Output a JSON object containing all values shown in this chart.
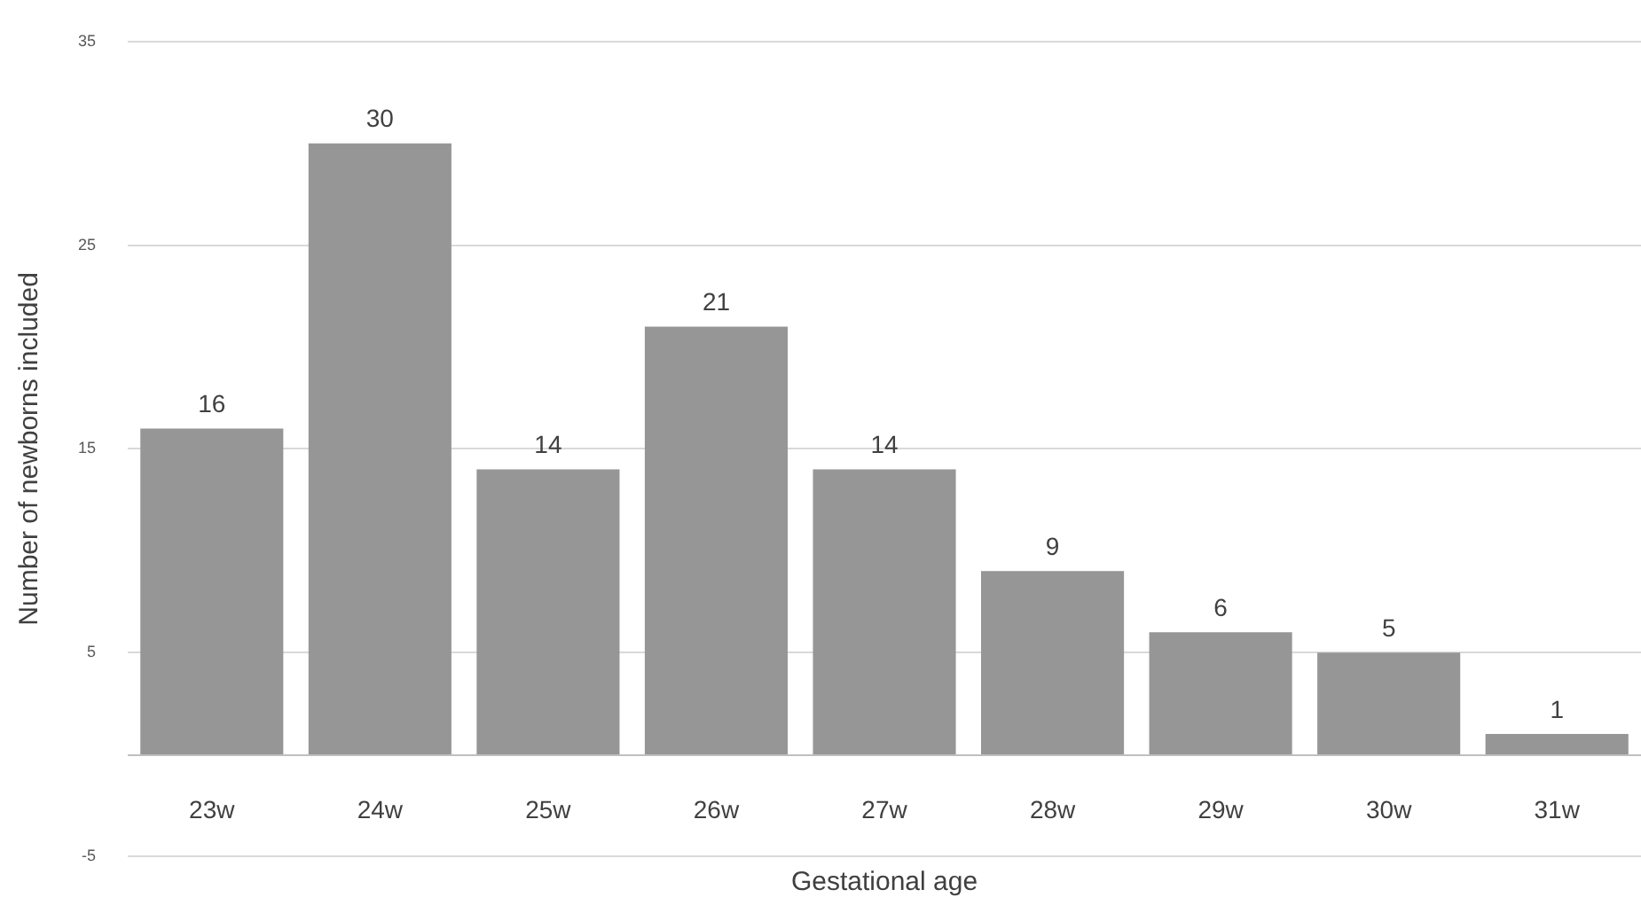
{
  "chart_data": {
    "type": "bar",
    "xlabel": "Gestational age",
    "ylabel": "Number of newborns included",
    "categories": [
      "23w",
      "24w",
      "25w",
      "26w",
      "27w",
      "28w",
      "29w",
      "30w",
      "31w"
    ],
    "values": [
      16,
      30,
      14,
      21,
      14,
      9,
      6,
      5,
      1
    ],
    "color": "#969696",
    "ylim": [
      -5,
      35
    ],
    "yticks": [
      -5,
      5,
      15,
      25,
      35
    ],
    "grid": "y",
    "data_labels": true
  }
}
